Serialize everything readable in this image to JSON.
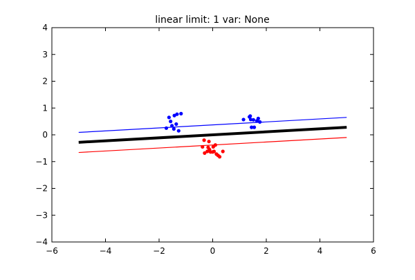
{
  "chart_data": {
    "type": "scatter",
    "title": "linear limit: 1 var: None",
    "xlabel": "",
    "ylabel": "",
    "xlim": [
      -6,
      6
    ],
    "ylim": [
      -4,
      4
    ],
    "xticks": [
      -6,
      -4,
      -2,
      0,
      2,
      4,
      6
    ],
    "yticks": [
      -4,
      -3,
      -2,
      -1,
      0,
      1,
      2,
      3,
      4
    ],
    "xtick_labels": [
      "−6",
      "−4",
      "−2",
      "0",
      "2",
      "4",
      "6"
    ],
    "ytick_labels": [
      "−4",
      "−3",
      "−2",
      "−1",
      "0",
      "1",
      "2",
      "3",
      "4"
    ],
    "grid": false,
    "series": [
      {
        "type": "scatter",
        "color": "#0000ff",
        "points": [
          [
            -1.73,
            0.25
          ],
          [
            -1.63,
            0.65
          ],
          [
            -1.57,
            0.5
          ],
          [
            -1.52,
            0.34
          ],
          [
            -1.45,
            0.22
          ],
          [
            -1.43,
            0.72
          ],
          [
            -1.36,
            0.4
          ],
          [
            -1.33,
            0.77
          ],
          [
            -1.27,
            0.15
          ],
          [
            -1.18,
            0.79
          ],
          [
            1.15,
            0.57
          ],
          [
            1.37,
            0.67
          ],
          [
            1.4,
            0.7
          ],
          [
            1.42,
            0.57
          ],
          [
            1.45,
            0.28
          ],
          [
            1.52,
            0.56
          ],
          [
            1.55,
            0.28
          ],
          [
            1.65,
            0.52
          ],
          [
            1.7,
            0.61
          ],
          [
            1.76,
            0.48
          ]
        ]
      },
      {
        "type": "scatter",
        "color": "#ff0000",
        "points": [
          [
            -0.38,
            -0.45
          ],
          [
            -0.32,
            -0.2
          ],
          [
            -0.3,
            -0.68
          ],
          [
            -0.2,
            -0.62
          ],
          [
            -0.17,
            -0.47
          ],
          [
            -0.14,
            -0.25
          ],
          [
            -0.12,
            -0.55
          ],
          [
            -0.08,
            -0.64
          ],
          [
            0.0,
            -0.64
          ],
          [
            0.02,
            -0.45
          ],
          [
            0.05,
            -0.62
          ],
          [
            0.1,
            -0.38
          ],
          [
            0.14,
            -0.72
          ],
          [
            0.2,
            -0.77
          ],
          [
            0.26,
            -0.82
          ],
          [
            0.38,
            -0.62
          ]
        ]
      },
      {
        "type": "line",
        "color": "#0000ff",
        "width": "thin",
        "points": [
          [
            -5,
            0.09
          ],
          [
            5,
            0.65
          ]
        ]
      },
      {
        "type": "line",
        "color": "#000000",
        "width": "thick",
        "points": [
          [
            -5,
            -0.28
          ],
          [
            5,
            0.28
          ]
        ]
      },
      {
        "type": "line",
        "color": "#ff0000",
        "width": "thin",
        "points": [
          [
            -5,
            -0.66
          ],
          [
            5,
            -0.1
          ]
        ]
      }
    ]
  }
}
